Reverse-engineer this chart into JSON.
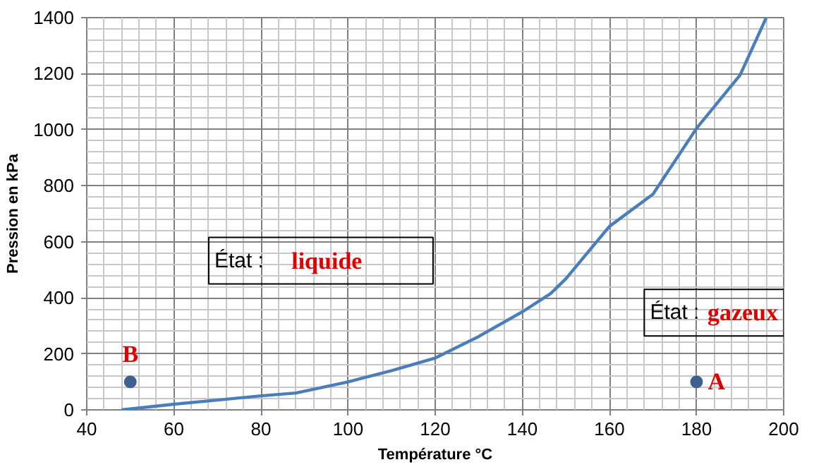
{
  "chart_data": {
    "type": "line",
    "xlabel": "Température °C",
    "ylabel": "Pression en kPa",
    "xlim": [
      40,
      200
    ],
    "ylim": [
      0,
      1400
    ],
    "xticks": [
      40,
      60,
      80,
      100,
      120,
      140,
      160,
      180,
      200
    ],
    "yticks": [
      0,
      200,
      400,
      600,
      800,
      1000,
      1200,
      1400
    ],
    "grid": true,
    "line_style": "solid",
    "series": [
      {
        "marker": "none",
        "color": "#4a7ebb",
        "x": [
          48,
          60,
          70,
          80,
          88,
          100,
          110,
          120,
          130,
          140,
          146.5,
          150,
          160,
          170,
          180,
          190,
          196
        ],
        "values": [
          0,
          20,
          35,
          50,
          60,
          100,
          140,
          185,
          262,
          350,
          415,
          468,
          655,
          770,
          1005,
          1195,
          1400
        ]
      },
      {
        "type": "scatter",
        "marker": "circle",
        "color": "#3f5f8f",
        "x": [
          50,
          180
        ],
        "values": [
          100,
          100
        ]
      }
    ],
    "annotations": [
      "État :",
      "liquide",
      "État :",
      "gazeux",
      {
        "text": "B",
        "x": 50,
        "y": 100
      },
      {
        "text": "A",
        "x": 180,
        "y": 100
      }
    ]
  }
}
